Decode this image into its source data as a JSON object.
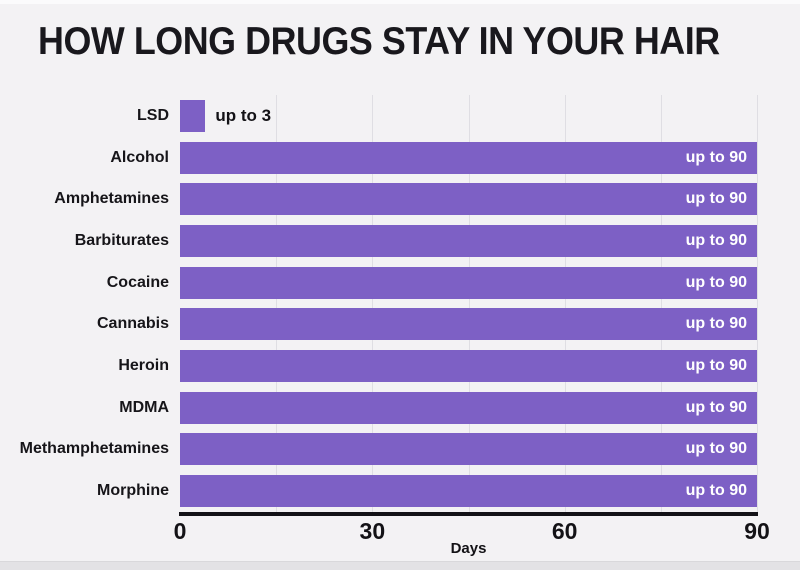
{
  "title": "HOW LONG DRUGS STAY IN YOUR HAIR",
  "colors": {
    "bar": "#7d60c5",
    "background": "#f3f2f4",
    "gridline": "#dfdee3",
    "axis": "#131217",
    "title_text": "#19181d",
    "bar_label_inside": "#ffffff",
    "bar_label_outside": "#131216"
  },
  "chart_data": {
    "type": "bar",
    "orientation": "horizontal",
    "title": "HOW LONG DRUGS STAY IN YOUR HAIR",
    "categories": [
      "LSD",
      "Alcohol",
      "Amphetamines",
      "Barbiturates",
      "Cocaine",
      "Cannabis",
      "Heroin",
      "MDMA",
      "Methamphetamines",
      "Morphine"
    ],
    "values": [
      3,
      90,
      90,
      90,
      90,
      90,
      90,
      90,
      90,
      90
    ],
    "bar_labels": [
      "up to 3",
      "up to 90",
      "up to 90",
      "up to 90",
      "up to 90",
      "up to 90",
      "up to 90",
      "up to 90",
      "up to 90",
      "up to 90"
    ],
    "xlabel": "Days",
    "ylabel": "",
    "xlim": [
      0,
      90
    ],
    "x_ticks": [
      0,
      30,
      60,
      90
    ],
    "grid_step": 15,
    "grid": true,
    "legend_position": "none"
  }
}
